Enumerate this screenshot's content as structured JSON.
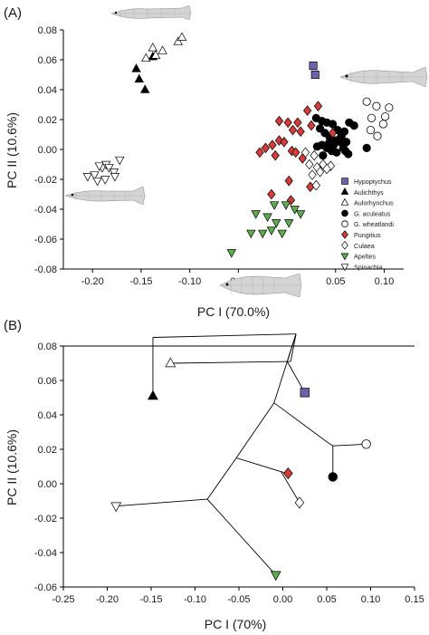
{
  "figure": {
    "panel_a_label": "(A)",
    "panel_b_label": "(B)"
  },
  "chart_data": [
    {
      "type": "scatter",
      "panel": "(A)",
      "xlabel": "PC I (70.0%)",
      "ylabel": "PC II (10.6%)",
      "xlim": [
        -0.23,
        0.12
      ],
      "ylim": [
        -0.08,
        0.08
      ],
      "xticks": [
        -0.2,
        -0.15,
        -0.1,
        -0.05,
        0.05,
        0.1
      ],
      "xtick_labels": [
        "-0.20",
        "-0.15",
        "-0.10",
        "-0.05",
        "0.05",
        "0.10"
      ],
      "yticks": [
        -0.08,
        -0.06,
        -0.04,
        -0.02,
        0.0,
        0.02,
        0.04,
        0.06,
        0.08
      ],
      "ytick_labels": [
        "-0.08",
        "-0.06",
        "-0.04",
        "-0.02",
        "0.00",
        "0.02",
        "0.04",
        "0.06",
        "0.08"
      ],
      "grid": false,
      "legend_position": "lower-right",
      "series": [
        {
          "name": "Hypoptychus",
          "marker": "square",
          "color": "#6b63ab",
          "x": [
            0.027,
            0.029
          ],
          "y": [
            0.056,
            0.05
          ]
        },
        {
          "name": "Aulichthys",
          "marker": "triangle-up",
          "color": "#000000",
          "x": [
            -0.155,
            -0.138,
            -0.152,
            -0.146
          ],
          "y": [
            0.054,
            0.062,
            0.047,
            0.04
          ]
        },
        {
          "name": "Aulorhynchus",
          "marker": "triangle-up-open",
          "color": "#ffffff",
          "x": [
            -0.145,
            -0.128,
            -0.112,
            -0.108,
            -0.138,
            -0.135
          ],
          "y": [
            0.061,
            0.066,
            0.072,
            0.075,
            0.068,
            0.063
          ]
        },
        {
          "name": "G. aculeatus",
          "marker": "circle",
          "color": "#000000",
          "x": [
            0.03,
            0.036,
            0.041,
            0.047,
            0.052,
            0.056,
            0.061,
            0.034,
            0.039,
            0.044,
            0.049,
            0.054,
            0.059,
            0.064,
            0.069,
            0.031,
            0.036,
            0.041,
            0.046,
            0.051,
            0.058,
            0.082,
            0.063,
            0.037,
            0.043,
            0.048,
            0.055,
            0.06
          ],
          "y": [
            0.021,
            0.019,
            0.018,
            0.017,
            0.013,
            0.009,
            0.005,
            0.014,
            0.011,
            0.008,
            0.006,
            0.007,
            0.012,
            0.018,
            0.016,
            0.002,
            0.003,
            0.001,
            -0.001,
            -0.002,
            0.001,
            0.001,
            -0.003,
            -0.004,
            0.004,
            0.003,
            0.005,
            -0.001
          ]
        },
        {
          "name": "G. wheatlandi",
          "marker": "circle-open",
          "color": "#ffffff",
          "x": [
            0.082,
            0.092,
            0.105,
            0.101,
            0.087,
            0.099,
            0.086,
            0.093
          ],
          "y": [
            0.032,
            0.029,
            0.028,
            0.022,
            0.021,
            0.017,
            0.013,
            0.009
          ]
        },
        {
          "name": "Pungitius",
          "marker": "diamond",
          "color": "#d83a3a",
          "x": [
            -0.008,
            0.001,
            0.011,
            0.021,
            0.032,
            0.006,
            0.014,
            0.025,
            0.047,
            -0.028,
            -0.022,
            -0.015,
            -0.008,
            -0.003,
            0.005,
            0.009,
            -0.012,
            0.016,
            0.002,
            -0.016,
            0.004,
            0.024
          ],
          "y": [
            0.019,
            0.018,
            0.018,
            0.026,
            0.029,
            0.013,
            0.012,
            0.016,
            0.011,
            -0.002,
            0.001,
            0.003,
            0.006,
            0.005,
            -0.001,
            -0.002,
            -0.004,
            -0.006,
            -0.021,
            -0.03,
            -0.034,
            -0.025
          ]
        },
        {
          "name": "Culaea",
          "marker": "diamond-open",
          "color": "#ffffff",
          "x": [
            0.019,
            0.028,
            0.023,
            0.031,
            0.037,
            0.045,
            0.041,
            0.034,
            0.026,
            0.03
          ],
          "y": [
            -0.002,
            -0.004,
            -0.01,
            -0.012,
            -0.01,
            -0.011,
            -0.013,
            -0.015,
            -0.017,
            -0.024
          ]
        },
        {
          "name": "Apeltes",
          "marker": "triangle-down",
          "color": "#5cae4c",
          "x": [
            -0.037,
            -0.025,
            -0.016,
            -0.011,
            -0.005,
            0.002,
            -0.02,
            -0.032,
            -0.013,
            -0.001,
            0.008,
            0.014,
            -0.057
          ],
          "y": [
            -0.056,
            -0.056,
            -0.054,
            -0.049,
            -0.056,
            -0.049,
            -0.045,
            -0.043,
            -0.037,
            -0.037,
            -0.04,
            -0.043,
            -0.069
          ]
        },
        {
          "name": "Spinachia",
          "marker": "triangle-down-open",
          "color": "#ffffff",
          "x": [
            -0.205,
            -0.198,
            -0.19,
            -0.193,
            -0.186,
            -0.183,
            -0.178,
            -0.195,
            -0.187,
            -0.177,
            -0.172
          ],
          "y": [
            -0.018,
            -0.017,
            -0.012,
            -0.011,
            -0.01,
            -0.012,
            -0.015,
            -0.021,
            -0.02,
            -0.018,
            -0.007
          ]
        }
      ]
    },
    {
      "type": "tree-scatter",
      "panel": "(B)",
      "xlabel": "PC I (70%)",
      "ylabel": "PC II (10.6%)",
      "xlim": [
        -0.25,
        0.15
      ],
      "ylim": [
        -0.06,
        0.08
      ],
      "xticks": [
        -0.25,
        -0.2,
        -0.15,
        -0.1,
        -0.05,
        0.0,
        0.05,
        0.1,
        0.15
      ],
      "xtick_labels": [
        "-0.25",
        "-0.20",
        "-0.15",
        "-0.10",
        "-0.05",
        "0.00",
        "0.05",
        "0.10",
        "0.15"
      ],
      "yticks": [
        -0.06,
        -0.04,
        -0.02,
        0.0,
        0.02,
        0.04,
        0.06,
        0.08
      ],
      "ytick_labels": [
        "-0.06",
        "-0.04",
        "-0.02",
        "0.00",
        "0.02",
        "0.04",
        "0.06",
        "0.08"
      ],
      "grid": false,
      "tips": [
        {
          "name": "Aulichthys",
          "marker": "triangle-up",
          "color": "#000000",
          "x": -0.148,
          "y": 0.051
        },
        {
          "name": "Aulorhynchus",
          "marker": "triangle-up-open",
          "color": "#ffffff",
          "x": -0.128,
          "y": 0.07
        },
        {
          "name": "Hypoptychus",
          "marker": "square",
          "color": "#6b63ab",
          "x": 0.025,
          "y": 0.053
        },
        {
          "name": "G. wheatlandi",
          "marker": "circle-open",
          "color": "#ffffff",
          "x": 0.095,
          "y": 0.023
        },
        {
          "name": "G. aculeatus",
          "marker": "circle",
          "color": "#000000",
          "x": 0.057,
          "y": 0.004
        },
        {
          "name": "Pungitius",
          "marker": "diamond",
          "color": "#d83a3a",
          "x": 0.006,
          "y": 0.006
        },
        {
          "name": "Culaea",
          "marker": "diamond-open",
          "color": "#ffffff",
          "x": 0.019,
          "y": -0.011
        },
        {
          "name": "Spinachia",
          "marker": "triangle-down-open",
          "color": "#ffffff",
          "x": -0.19,
          "y": -0.013
        },
        {
          "name": "Apeltes",
          "marker": "triangle-down",
          "color": "#5cae4c",
          "x": -0.008,
          "y": -0.053
        }
      ],
      "nodes": [
        {
          "id": "root",
          "x": 0.015,
          "y": 0.087
        },
        {
          "id": "n_aul",
          "x": -0.148,
          "y": 0.085
        },
        {
          "id": "n_bend",
          "x": 0.009,
          "y": 0.071
        },
        {
          "id": "n_up",
          "x": 0.005,
          "y": 0.071
        },
        {
          "id": "n1",
          "x": -0.01,
          "y": 0.047
        },
        {
          "id": "n_gast",
          "x": 0.051,
          "y": 0.024
        },
        {
          "id": "n_g2",
          "x": 0.057,
          "y": 0.022
        },
        {
          "id": "n2",
          "x": -0.053,
          "y": 0.015
        },
        {
          "id": "n_pc",
          "x": -0.002,
          "y": 0.007
        },
        {
          "id": "n3",
          "x": -0.086,
          "y": -0.009
        }
      ],
      "edges": [
        [
          "root",
          "n_aul"
        ],
        [
          "n_aul",
          "Aulichthys"
        ],
        [
          "root",
          "n_bend"
        ],
        [
          "n_bend",
          "Aulorhynchus"
        ],
        [
          "root",
          "n_up"
        ],
        [
          "n_up",
          "Hypoptychus"
        ],
        [
          "root",
          "n1"
        ],
        [
          "n1",
          "n_gast"
        ],
        [
          "n_gast",
          "n_g2"
        ],
        [
          "n_g2",
          "G. wheatlandi"
        ],
        [
          "n_g2",
          "G. aculeatus"
        ],
        [
          "n1",
          "n2"
        ],
        [
          "n2",
          "n_pc"
        ],
        [
          "n_pc",
          "Pungitius"
        ],
        [
          "n_pc",
          "Culaea"
        ],
        [
          "n2",
          "n3"
        ],
        [
          "n3",
          "Spinachia"
        ],
        [
          "n3",
          "Apeltes"
        ]
      ]
    }
  ]
}
